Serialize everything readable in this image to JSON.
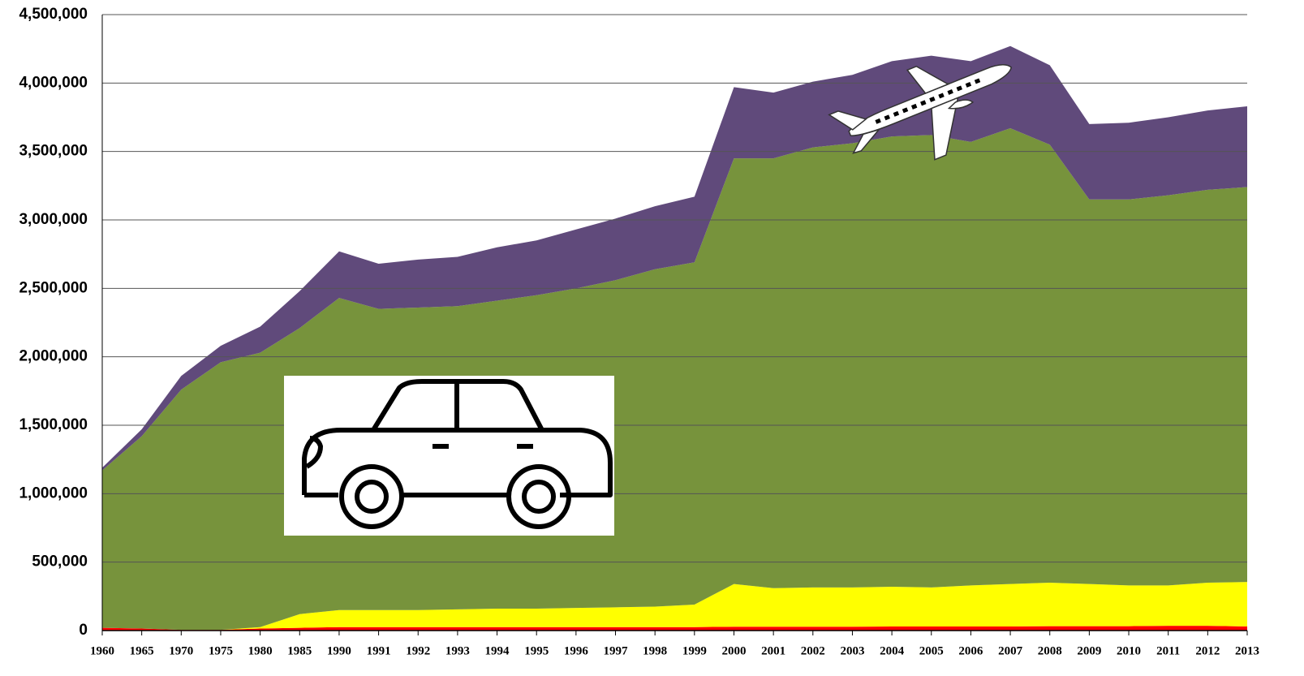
{
  "chart_data": {
    "type": "stacked-area",
    "categories": [
      "1960",
      "1965",
      "1970",
      "1975",
      "1980",
      "1985",
      "1990",
      "1991",
      "1992",
      "1993",
      "1994",
      "1995",
      "1996",
      "1997",
      "1998",
      "1999",
      "2000",
      "2001",
      "2002",
      "2003",
      "2004",
      "2005",
      "2006",
      "2007",
      "2008",
      "2009",
      "2010",
      "2011",
      "2012",
      "2013"
    ],
    "series": [
      {
        "color": "#ff0000",
        "values": [
          20000,
          15000,
          5000,
          5000,
          15000,
          20000,
          25000,
          25000,
          25000,
          25000,
          25000,
          25000,
          25000,
          25000,
          25000,
          25000,
          28000,
          28000,
          28000,
          28000,
          30000,
          30000,
          30000,
          30000,
          32000,
          32000,
          32000,
          35000,
          35000,
          30000
        ]
      },
      {
        "color": "#ffff00",
        "values": [
          0,
          0,
          0,
          0,
          10000,
          100000,
          125000,
          125000,
          125000,
          130000,
          135000,
          135000,
          140000,
          145000,
          150000,
          165000,
          312000,
          282000,
          287000,
          287000,
          290000,
          285000,
          300000,
          310000,
          318000,
          308000,
          298000,
          295000,
          315000,
          325000
        ]
      },
      {
        "color": "#77933c",
        "values": [
          1150000,
          1405000,
          1755000,
          1955000,
          2005000,
          2090000,
          2280000,
          2200000,
          2210000,
          2215000,
          2250000,
          2290000,
          2335000,
          2390000,
          2465000,
          2500000,
          3110000,
          3140000,
          3215000,
          3245000,
          3290000,
          3305000,
          3240000,
          3330000,
          3200000,
          2810000,
          2820000,
          2850000,
          2870000,
          2885000
        ]
      },
      {
        "color": "#604a7b",
        "values": [
          20000,
          50000,
          100000,
          120000,
          190000,
          270000,
          340000,
          330000,
          350000,
          360000,
          390000,
          400000,
          430000,
          450000,
          460000,
          480000,
          520000,
          480000,
          480000,
          500000,
          550000,
          580000,
          590000,
          600000,
          580000,
          550000,
          560000,
          570000,
          580000,
          590000
        ]
      }
    ],
    "ylim": [
      0,
      4500000
    ],
    "yticks": [
      0,
      {
        "value": 500000,
        "label": "500,000"
      },
      {
        "value": 1000000,
        "label": "1,000,000"
      },
      {
        "value": 1500000,
        "label": "1,500,000"
      },
      {
        "value": 2000000,
        "label": "2,000,000"
      },
      {
        "value": 2500000,
        "label": "2,500,000"
      },
      {
        "value": 3000000,
        "label": "3,000,000"
      },
      {
        "value": 3500000,
        "label": "3,500,000"
      },
      {
        "value": 4000000,
        "label": "4,000,000"
      },
      {
        "value": 4500000,
        "label": "4,500,000"
      }
    ],
    "grid": true
  }
}
